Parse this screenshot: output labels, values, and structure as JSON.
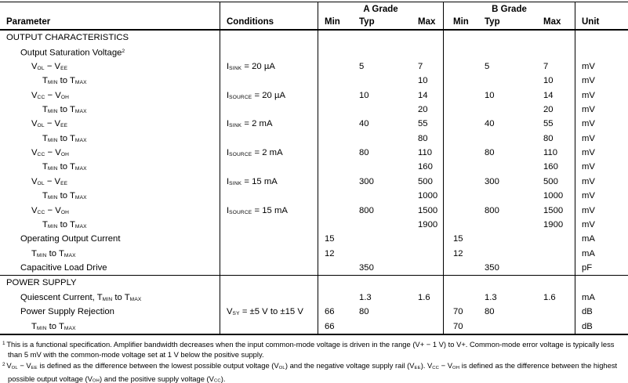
{
  "table": {
    "header": {
      "parameter": "Parameter",
      "conditions": "Conditions",
      "a_grade": "A Grade",
      "b_grade": "B Grade",
      "min": "Min",
      "typ": "Typ",
      "max": "Max",
      "unit": "Unit"
    },
    "rows": [
      {
        "p": "OUTPUT CHARACTERISTICS",
        "ind": 0,
        "sec": true
      },
      {
        "p": "Output Saturation Voltage^2^",
        "ind": 1
      },
      {
        "p": "V~OL~ − V~EE~",
        "ind": 2,
        "c": "I~SINK~ = 20 µA",
        "at": "5",
        "ax": "7",
        "bt": "5",
        "bx": "7",
        "u": "mV"
      },
      {
        "p": "T~MIN~ to T~MAX~",
        "ind": 3,
        "ax": "10",
        "bx": "10",
        "u": "mV"
      },
      {
        "p": "V~CC~ − V~OH~",
        "ind": 2,
        "c": "I~SOURCE~ = 20 µA",
        "at": "10",
        "ax": "14",
        "bt": "10",
        "bx": "14",
        "u": "mV"
      },
      {
        "p": "T~MIN~ to T~MAX~",
        "ind": 3,
        "ax": "20",
        "bx": "20",
        "u": "mV"
      },
      {
        "p": "V~OL~ − V~EE~",
        "ind": 2,
        "c": "I~SINK~ = 2 mA",
        "at": "40",
        "ax": "55",
        "bt": "40",
        "bx": "55",
        "u": "mV"
      },
      {
        "p": "T~MIN~ to T~MAX~",
        "ind": 3,
        "ax": "80",
        "bx": "80",
        "u": "mV"
      },
      {
        "p": "V~CC~ − V~OH~",
        "ind": 2,
        "c": "I~SOURCE~ = 2 mA",
        "at": "80",
        "ax": "110",
        "bt": "80",
        "bx": "110",
        "u": "mV"
      },
      {
        "p": "T~MIN~ to T~MAX~",
        "ind": 3,
        "ax": "160",
        "bx": "160",
        "u": "mV"
      },
      {
        "p": "V~OL~ − V~EE~",
        "ind": 2,
        "c": "I~SINK~ = 15 mA",
        "at": "300",
        "ax": "500",
        "bt": "300",
        "bx": "500",
        "u": "mV"
      },
      {
        "p": "T~MIN~ to T~MAX~",
        "ind": 3,
        "ax": "1000",
        "bx": "1000",
        "u": "mV"
      },
      {
        "p": "V~CC~ − V~OH~",
        "ind": 2,
        "c": "I~SOURCE~ = 15 mA",
        "at": "800",
        "ax": "1500",
        "bt": "800",
        "bx": "1500",
        "u": "mV"
      },
      {
        "p": "T~MIN~ to T~MAX~",
        "ind": 3,
        "ax": "1900",
        "bx": "1900",
        "u": "mV"
      },
      {
        "p": "Operating Output Current",
        "ind": 1,
        "am": "15",
        "bm": "15",
        "u": "mA"
      },
      {
        "p": "T~MIN~ to T~MAX~",
        "ind": 2,
        "am": "12",
        "bm": "12",
        "u": "mA"
      },
      {
        "p": "Capacitive Load Drive",
        "ind": 1,
        "at": "350",
        "bt": "350",
        "u": "pF"
      },
      {
        "p": "POWER SUPPLY",
        "ind": 0,
        "sec": true,
        "rule": true
      },
      {
        "p": "Quiescent Current, T~MIN~ to T~MAX~",
        "ind": 1,
        "at": "1.3",
        "ax": "1.6",
        "bt": "1.3",
        "bx": "1.6",
        "u": "mA"
      },
      {
        "p": "Power Supply Rejection",
        "ind": 1,
        "c": "V~SY~ = ±5 V to ±15 V",
        "am": "66",
        "at": "80",
        "bm": "70",
        "bt": "80",
        "u": "dB"
      },
      {
        "p": "T~MIN~ to T~MAX~",
        "ind": 2,
        "am": "66",
        "bm": "70",
        "u": "dB"
      }
    ]
  },
  "footnotes": [
    "^1 ^This is a functional specification. Amplifier bandwidth decreases when the input common-mode voltage is driven in the range (V+ − 1 V) to V+. Common-mode error voltage is typically less than 5 mV with the common-mode voltage set at 1 V below the positive supply.",
    "^2 ^V~OL~ − V~EE~ is defined as the difference between the lowest possible output voltage (V~OL~) and the negative voltage supply rail (V~EE~). V~CC~ − V~OH~ is defined as the difference between the highest possible output voltage (V~OH~) and the positive supply voltage (V~CC~)."
  ],
  "colors": {
    "text": "#000000",
    "background": "#ffffff",
    "rules": "#000000"
  }
}
